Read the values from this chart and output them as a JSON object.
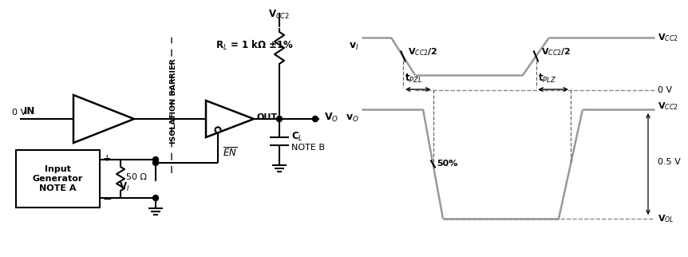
{
  "bg_color": "#ffffff",
  "line_color": "#000000",
  "gray_wave": "#999999",
  "fig_width": 8.36,
  "fig_height": 3.02,
  "circuit": {
    "vcc2_label": "V$_{CC2}$",
    "rl_label": "R$_L$ = 1 kΩ ±1%",
    "in_label": "IN",
    "0v_label": "0 V",
    "out_label": "OUT",
    "vo_label": "V$_O$",
    "cl_label": "C$_L$",
    "note_b": "NOTE B",
    "iso_label": "ISOLATION BARRIER",
    "input_gen_label": "Input\nGenerator\nNOTE A",
    "vi_label": "V$_I$",
    "r50_label": "50 Ω",
    "plus_label": "+",
    "minus_label": "−"
  },
  "waveform": {
    "vi_label": "v$_I$",
    "vo_label": "v$_O$",
    "vcc2_top_label": "V$_{CC2}$",
    "vcc2_half_label": "V$_{CC2}$/2",
    "vcc2_half_label2": "V$_{CC2}$/2",
    "v0_label": "0 V",
    "vcc2_right_label": "V$_{CC2}$",
    "v05_label": "0.5 V",
    "vol_label": "V$_{OL}$",
    "tpzl_label": "t$_{PZL}$",
    "tplz_label": "t$_{PLZ}$",
    "pct50_label": "50%"
  }
}
